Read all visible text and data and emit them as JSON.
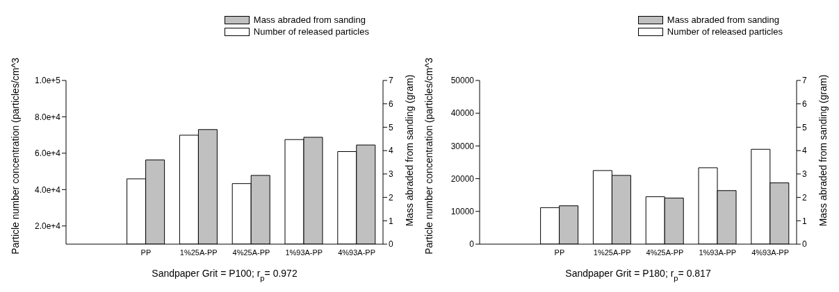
{
  "chart_data": [
    {
      "type": "bar",
      "categories": [
        "PP",
        "1%25A-PP",
        "4%25A-PP",
        "1%93A-PP",
        "4%93A-PP"
      ],
      "xlabel": "Sandpaper Grit = P100; r$_{p}$= 0.972",
      "ylabel": "Particle number concentration (particles/cm^3",
      "y2label": "Mass abraded from sanding (gram)",
      "series": [
        {
          "name": "Number of released particles",
          "color": "#ffffff",
          "values": [
            45900,
            69900,
            43300,
            67500,
            60900
          ]
        },
        {
          "name": "Mass abraded from sanding",
          "color": "#c0c0c0",
          "axis": "y2",
          "values": [
            3.6,
            4.9,
            2.94,
            4.57,
            4.24
          ]
        }
      ],
      "ylim": [
        10000,
        100000
      ],
      "yticks": [
        {
          "value": 20000,
          "label": "2.0e+4"
        },
        {
          "value": 40000,
          "label": "4.0e+4"
        },
        {
          "value": 60000,
          "label": "6.0e+4"
        },
        {
          "value": 80000,
          "label": "8.0e+4"
        },
        {
          "value": 100000,
          "label": "1.0e+5"
        }
      ],
      "y2lim": [
        0,
        7
      ],
      "y2ticks": [
        0,
        1,
        2,
        3,
        4,
        5,
        6,
        7
      ],
      "legend": "top right",
      "grid": false
    },
    {
      "type": "bar",
      "categories": [
        "PP",
        "1%25A-PP",
        "4%25A-PP",
        "1%93A-PP",
        "4%93A-PP"
      ],
      "xlabel": "Sandpaper Grit = P180; r$_{p}$= 0.817",
      "ylabel": "Particle number concentration (particles/cm^3",
      "y2label": "Mass abraded from sanding (gram)",
      "series": [
        {
          "name": "Number of released particles",
          "color": "#ffffff",
          "values": [
            11150,
            22480,
            14480,
            23330,
            28970
          ]
        },
        {
          "name": "Mass abraded from sanding",
          "color": "#c0c0c0",
          "axis": "y2",
          "values": [
            1.64,
            2.94,
            1.97,
            2.29,
            2.62
          ]
        }
      ],
      "ylim": [
        0,
        50000
      ],
      "yticks": [
        0,
        10000,
        20000,
        30000,
        40000,
        50000
      ],
      "y2lim": [
        0,
        7
      ],
      "y2ticks": [
        0,
        1,
        2,
        3,
        4,
        5,
        6,
        7
      ],
      "legend": "top right",
      "grid": false
    }
  ]
}
